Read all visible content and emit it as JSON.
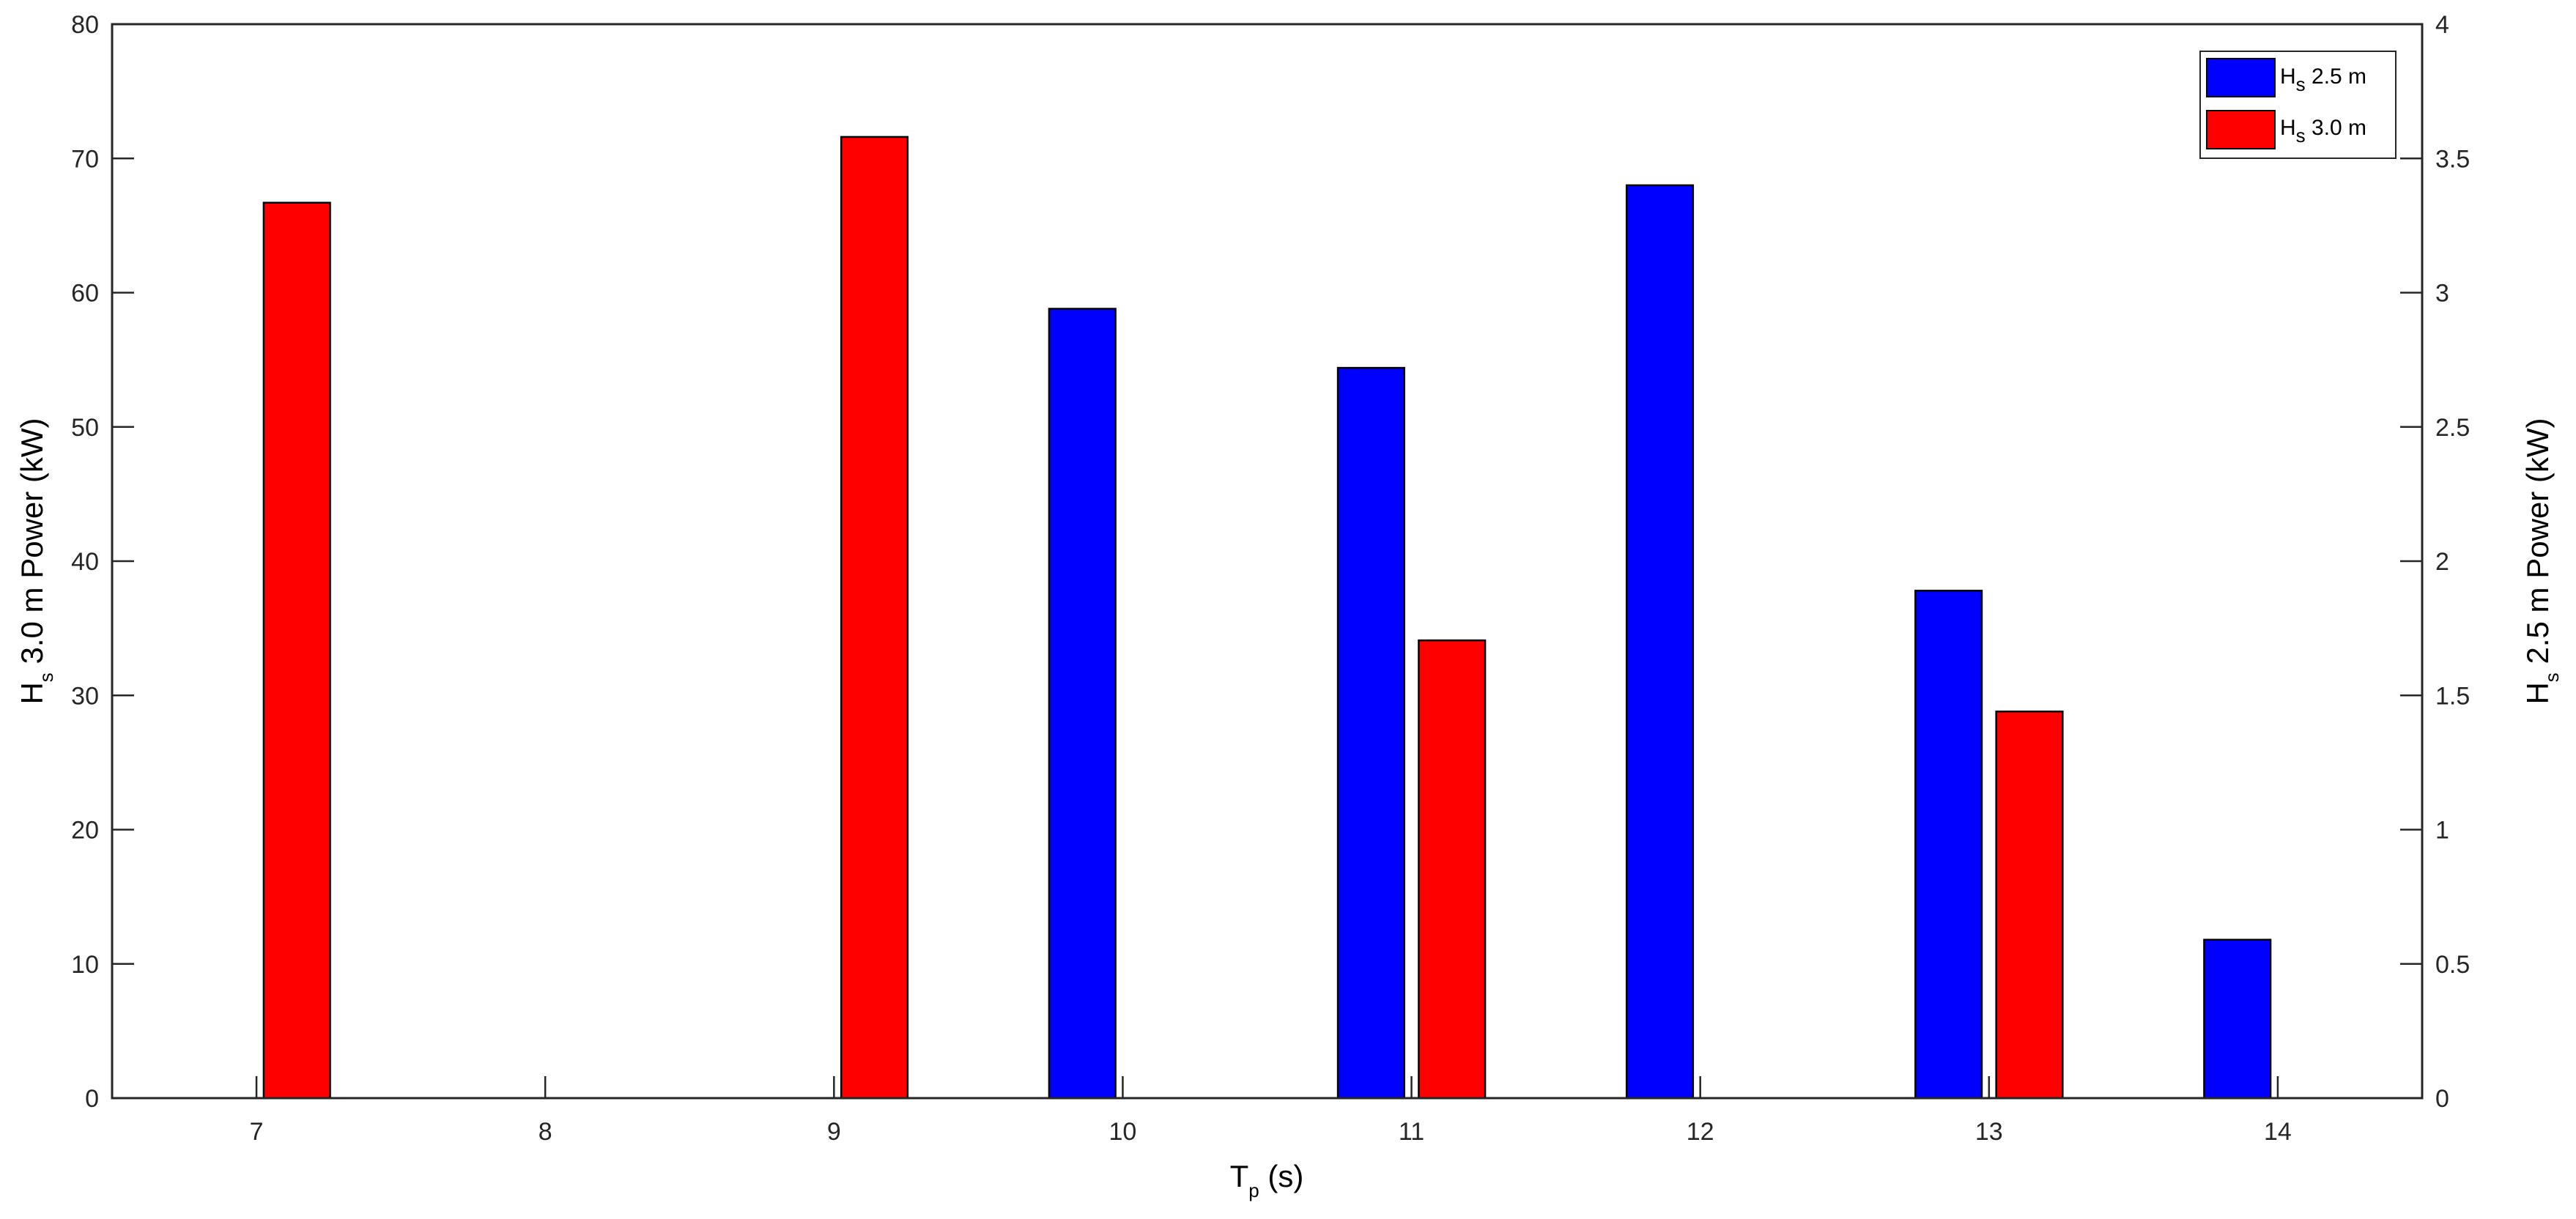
{
  "chart_data": {
    "type": "bar",
    "x": [
      7,
      8,
      9,
      10,
      11,
      12,
      13,
      14
    ],
    "x_tick_labels": [
      "7",
      "8",
      "9",
      "10",
      "11",
      "12",
      "13",
      "14"
    ],
    "xlim": [
      6.5,
      14.5
    ],
    "xlabel": {
      "main": "T",
      "sub": "p",
      "rest": " (s)"
    },
    "left_axis": {
      "ylabel": {
        "main": "H",
        "sub": "s",
        "rest": " 3.0 m Power (kW)"
      },
      "ylim": [
        0,
        80
      ],
      "ticks": [
        0,
        10,
        20,
        30,
        40,
        50,
        60,
        70,
        80
      ],
      "tick_labels": [
        "0",
        "10",
        "20",
        "30",
        "40",
        "50",
        "60",
        "70",
        "80"
      ]
    },
    "right_axis": {
      "ylabel": {
        "main": "H",
        "sub": "s",
        "rest": " 2.5 m Power (kW)"
      },
      "ylim": [
        0,
        4
      ],
      "ticks": [
        0,
        0.5,
        1,
        1.5,
        2,
        2.5,
        3,
        3.5,
        4
      ],
      "tick_labels": [
        "0",
        "0.5",
        "1",
        "1.5",
        "2",
        "2.5",
        "3",
        "3.5",
        "4"
      ]
    },
    "series": [
      {
        "name": "Hs 2.5 m",
        "legend": {
          "main": "H",
          "sub": "s",
          "rest": " 2.5 m"
        },
        "color": "#0000ff",
        "axis": "right",
        "values": [
          null,
          null,
          null,
          2.94,
          2.72,
          3.4,
          1.89,
          0.59
        ]
      },
      {
        "name": "Hs 3.0 m",
        "legend": {
          "main": "H",
          "sub": "s",
          "rest": " 3.0 m"
        },
        "color": "#ff0000",
        "axis": "left",
        "values": [
          66.7,
          null,
          71.6,
          null,
          34.1,
          null,
          28.8,
          null
        ]
      }
    ],
    "legend_position": "top-right",
    "grid": false
  }
}
